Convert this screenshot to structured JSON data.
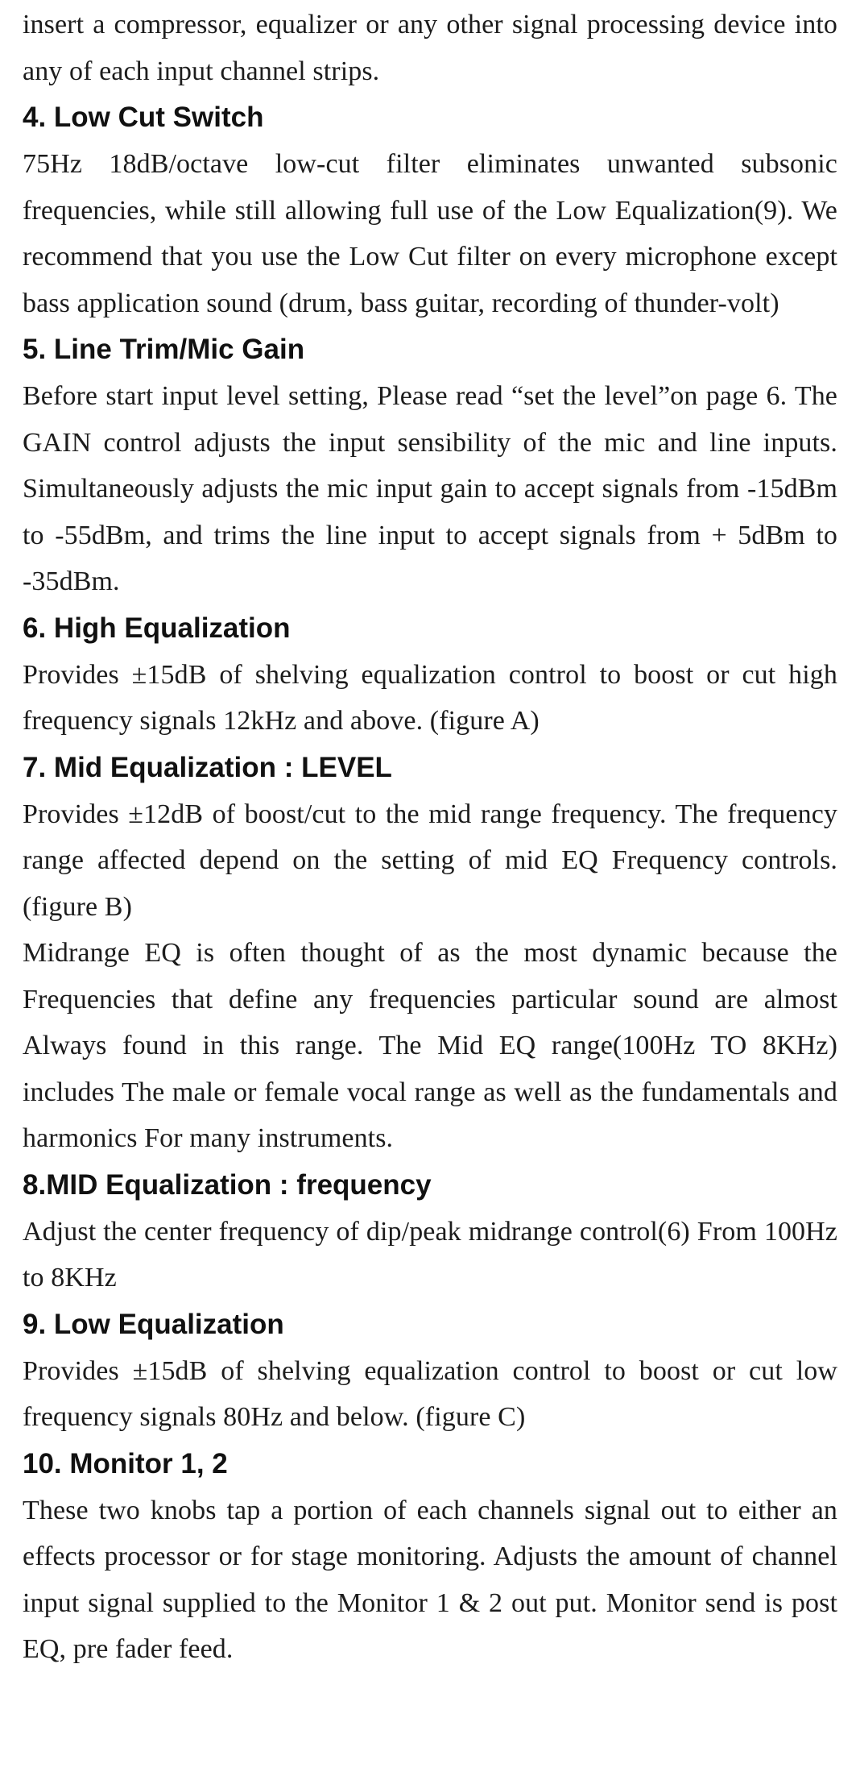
{
  "intro_text": "insert a compressor, equalizer or any other signal processing device into any of each input channel strips.",
  "sections": [
    {
      "heading": "4. Low Cut Switch",
      "paragraphs": [
        "75Hz 18dB/octave low-cut filter eliminates unwanted subsonic frequencies, while still allowing full use of the Low Equalization(9). We recommend that you use the Low Cut filter on every microphone except bass application sound (drum, bass guitar, recording of thunder-volt)"
      ]
    },
    {
      "heading": "5. Line Trim/Mic Gain",
      "paragraphs": [
        "Before start input level setting, Please read “set the level”on page 6. The GAIN control adjusts the input sensibility of the mic and line inputs. Simultaneously adjusts the mic input gain to accept signals from -15dBm to -55dBm, and trims the line input to accept signals from + 5dBm to -35dBm."
      ]
    },
    {
      "heading": "6. High Equalization",
      "paragraphs": [
        "Provides ±15dB of shelving equalization control to boost or cut high frequency signals 12kHz and above. (figure A)"
      ]
    },
    {
      "heading": "7. Mid Equalization : LEVEL",
      "paragraphs": [
        "Provides ±12dB of boost/cut to the mid range frequency. The frequency range affected depend on the setting of mid EQ Frequency controls. (figure B)",
        "Midrange EQ is often thought of as the most dynamic because the Frequencies that define any frequencies particular sound are almost Always found in this range. The Mid EQ range(100Hz TO 8KHz) includes The male or female vocal range as well as the fundamentals and harmonics For many instruments."
      ]
    },
    {
      "heading": "8.MID Equalization : frequency",
      "paragraphs": [
        "Adjust the center frequency of dip/peak midrange control(6) From 100Hz to 8KHz"
      ]
    },
    {
      "heading": "9. Low Equalization",
      "paragraphs": [
        "Provides ±15dB of shelving equalization control to boost or cut low frequency signals 80Hz and below. (figure C)"
      ]
    },
    {
      "heading": "10. Monitor 1, 2",
      "paragraphs": [
        "These two knobs tap a portion of each channels signal out to either an effects processor or for stage monitoring. Adjusts the amount of channel input signal supplied to the Monitor 1 & 2 out put. Monitor send is post EQ, pre fader feed."
      ]
    }
  ]
}
